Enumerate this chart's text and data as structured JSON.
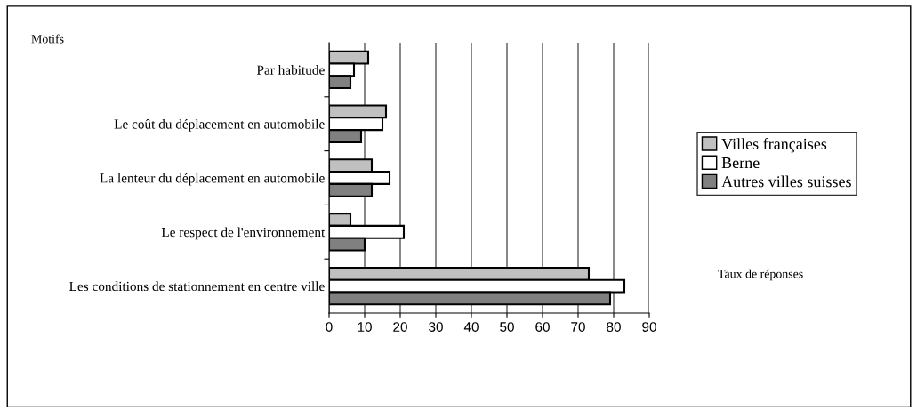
{
  "chart_data": {
    "type": "bar",
    "orientation": "horizontal",
    "ylabel": "Motifs",
    "xlabel": "Taux de réponses",
    "categories": [
      "Par habitude",
      "Le coût du déplacement en automobile",
      "La lenteur du déplacement en automobile",
      "Le respect de l'environnement",
      "Les conditions de stationnement en centre ville"
    ],
    "series": [
      {
        "name": "Villes françaises",
        "color": "#c0c0c0",
        "values": [
          11,
          16,
          12,
          6,
          73
        ]
      },
      {
        "name": "Berne",
        "color": "#ffffff",
        "values": [
          7,
          15,
          17,
          21,
          83
        ]
      },
      {
        "name": "Autres villes suisses",
        "color": "#808080",
        "values": [
          6,
          9,
          12,
          10,
          79
        ]
      }
    ],
    "xlim": [
      0,
      90
    ],
    "xticks": [
      0,
      10,
      20,
      30,
      40,
      50,
      60,
      70,
      80,
      90
    ],
    "grid": "x",
    "legend": "right"
  }
}
